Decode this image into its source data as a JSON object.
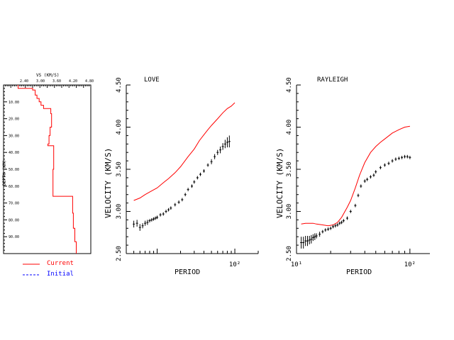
{
  "chart_data": [
    {
      "type": "line",
      "panel": "model",
      "title": "VS (KM/S)",
      "xlabel": "VS (KM/S)",
      "ylabel": "DEPTH (KM)",
      "xlim": [
        2.4,
        4.8
      ],
      "ylim": [
        0,
        100
      ],
      "y_reversed": true,
      "x_ticks": [
        "2.40",
        "3.00",
        "3.60",
        "4.20",
        "4.80"
      ],
      "y_ticks": [
        "10.00",
        "20.00",
        "30.00",
        "40.00",
        "50.00",
        "60.00",
        "70.00",
        "80.00",
        "90.00"
      ],
      "series": [
        {
          "name": "Current",
          "color": "#ff0000",
          "points": [
            [
              2.8,
              0
            ],
            [
              2.8,
              2
            ],
            [
              3.2,
              2
            ],
            [
              3.2,
              3
            ],
            [
              3.27,
              3
            ],
            [
              3.27,
              6
            ],
            [
              3.32,
              6
            ],
            [
              3.32,
              8
            ],
            [
              3.38,
              8
            ],
            [
              3.38,
              10
            ],
            [
              3.43,
              10
            ],
            [
              3.43,
              12
            ],
            [
              3.5,
              12
            ],
            [
              3.5,
              14
            ],
            [
              3.7,
              14
            ],
            [
              3.7,
              17
            ],
            [
              3.72,
              17
            ],
            [
              3.72,
              25
            ],
            [
              3.68,
              25
            ],
            [
              3.68,
              30
            ],
            [
              3.65,
              30
            ],
            [
              3.65,
              35
            ],
            [
              3.62,
              35
            ],
            [
              3.62,
              36
            ],
            [
              3.78,
              36
            ],
            [
              3.78,
              50
            ],
            [
              3.76,
              50
            ],
            [
              3.76,
              66
            ],
            [
              4.3,
              66
            ],
            [
              4.3,
              76
            ],
            [
              4.32,
              76
            ],
            [
              4.32,
              85
            ],
            [
              4.36,
              85
            ],
            [
              4.36,
              93
            ],
            [
              4.4,
              93
            ],
            [
              4.4,
              100
            ]
          ]
        }
      ]
    },
    {
      "type": "scatter",
      "panel": "love",
      "title": "LOVE",
      "xlabel": "PERIOD",
      "ylabel": "VELOCITY (KM/S)",
      "x_scale": "log",
      "xlim": [
        4,
        200
      ],
      "ylim": [
        2.5,
        4.5
      ],
      "x_tick_labels": [
        "10²"
      ],
      "y_tick_labels": [
        "2.50",
        "3.00",
        "3.50",
        "4.00",
        "4.50"
      ],
      "series": [
        {
          "name": "predicted",
          "color": "#ff0000",
          "x": [
            5,
            6,
            7,
            8,
            10,
            12,
            14,
            17,
            20,
            25,
            30,
            35,
            40,
            45,
            50,
            60,
            70,
            80,
            90,
            100
          ],
          "y": [
            3.13,
            3.16,
            3.2,
            3.23,
            3.28,
            3.34,
            3.39,
            3.46,
            3.53,
            3.65,
            3.74,
            3.84,
            3.91,
            3.97,
            4.02,
            4.1,
            4.17,
            4.22,
            4.25,
            4.29
          ]
        },
        {
          "name": "observed",
          "color": "#000000",
          "x": [
            5,
            5.5,
            6,
            6.5,
            7,
            7.5,
            8,
            8.5,
            9,
            9.5,
            10,
            11,
            12,
            13,
            14,
            15,
            17,
            19,
            21,
            23,
            25,
            28,
            30,
            33,
            36,
            40,
            45,
            50,
            55,
            60,
            65,
            70,
            75,
            80,
            85
          ],
          "y": [
            2.85,
            2.86,
            2.81,
            2.83,
            2.86,
            2.87,
            2.89,
            2.9,
            2.91,
            2.92,
            2.93,
            2.96,
            2.97,
            3.0,
            3.02,
            3.04,
            3.08,
            3.11,
            3.14,
            3.2,
            3.26,
            3.3,
            3.35,
            3.4,
            3.44,
            3.48,
            3.55,
            3.59,
            3.65,
            3.7,
            3.73,
            3.77,
            3.8,
            3.82,
            3.83
          ],
          "err": [
            0.04,
            0.04,
            0.04,
            0.03,
            0.03,
            0.03,
            0.02,
            0.02,
            0.02,
            0.02,
            0.02,
            0.02,
            0.02,
            0.02,
            0.02,
            0.02,
            0.02,
            0.02,
            0.02,
            0.02,
            0.02,
            0.02,
            0.02,
            0.02,
            0.02,
            0.02,
            0.02,
            0.03,
            0.03,
            0.03,
            0.04,
            0.04,
            0.05,
            0.06,
            0.07
          ]
        }
      ]
    },
    {
      "type": "scatter",
      "panel": "rayleigh",
      "title": "RAYLEIGH",
      "xlabel": "PERIOD",
      "ylabel": "VELOCITY (KM/S)",
      "x_scale": "log",
      "xlim": [
        10,
        150
      ],
      "ylim": [
        2.5,
        4.5
      ],
      "x_tick_labels": [
        "10¹",
        "10²"
      ],
      "y_tick_labels": [
        "2.50",
        "3.00",
        "3.50",
        "4.00",
        "4.50"
      ],
      "series": [
        {
          "name": "predicted",
          "color": "#ff0000",
          "x": [
            11,
            12,
            13,
            14,
            15,
            17,
            19,
            21,
            23,
            25,
            28,
            30,
            33,
            36,
            40,
            45,
            50,
            55,
            60,
            70,
            80,
            90,
            100
          ],
          "y": [
            2.85,
            2.86,
            2.86,
            2.86,
            2.85,
            2.84,
            2.83,
            2.84,
            2.87,
            2.93,
            3.05,
            3.13,
            3.28,
            3.43,
            3.58,
            3.7,
            3.77,
            3.82,
            3.86,
            3.93,
            3.97,
            4.0,
            4.01
          ]
        },
        {
          "name": "observed",
          "color": "#000000",
          "x": [
            11,
            11.5,
            12,
            12.5,
            13,
            13.5,
            14,
            14.5,
            15,
            16,
            17,
            18,
            19,
            20,
            21,
            22,
            23,
            24,
            25,
            26,
            28,
            30,
            33,
            35,
            37,
            40,
            42,
            45,
            48,
            50,
            55,
            60,
            65,
            70,
            75,
            80,
            85,
            90,
            95,
            100
          ],
          "y": [
            2.63,
            2.63,
            2.65,
            2.65,
            2.66,
            2.67,
            2.69,
            2.7,
            2.71,
            2.73,
            2.76,
            2.78,
            2.79,
            2.8,
            2.82,
            2.83,
            2.84,
            2.86,
            2.87,
            2.89,
            2.92,
            3.0,
            3.07,
            3.19,
            3.3,
            3.36,
            3.38,
            3.41,
            3.43,
            3.47,
            3.52,
            3.55,
            3.57,
            3.6,
            3.62,
            3.63,
            3.64,
            3.65,
            3.65,
            3.64
          ],
          "err": [
            0.07,
            0.07,
            0.06,
            0.06,
            0.05,
            0.05,
            0.04,
            0.04,
            0.03,
            0.03,
            0.02,
            0.02,
            0.02,
            0.02,
            0.02,
            0.02,
            0.02,
            0.02,
            0.02,
            0.02,
            0.02,
            0.02,
            0.02,
            0.02,
            0.02,
            0.02,
            0.02,
            0.02,
            0.02,
            0.02,
            0.02,
            0.02,
            0.02,
            0.02,
            0.02,
            0.02,
            0.02,
            0.02,
            0.02,
            0.02
          ]
        }
      ]
    }
  ],
  "legend": {
    "items": [
      {
        "label": "Current",
        "color": "#ff0000",
        "label_color": "#ff0000",
        "style": "solid"
      },
      {
        "label": "Initial",
        "color": "#0000ff",
        "label_color": "#0000ff",
        "style": "dashed"
      }
    ]
  }
}
